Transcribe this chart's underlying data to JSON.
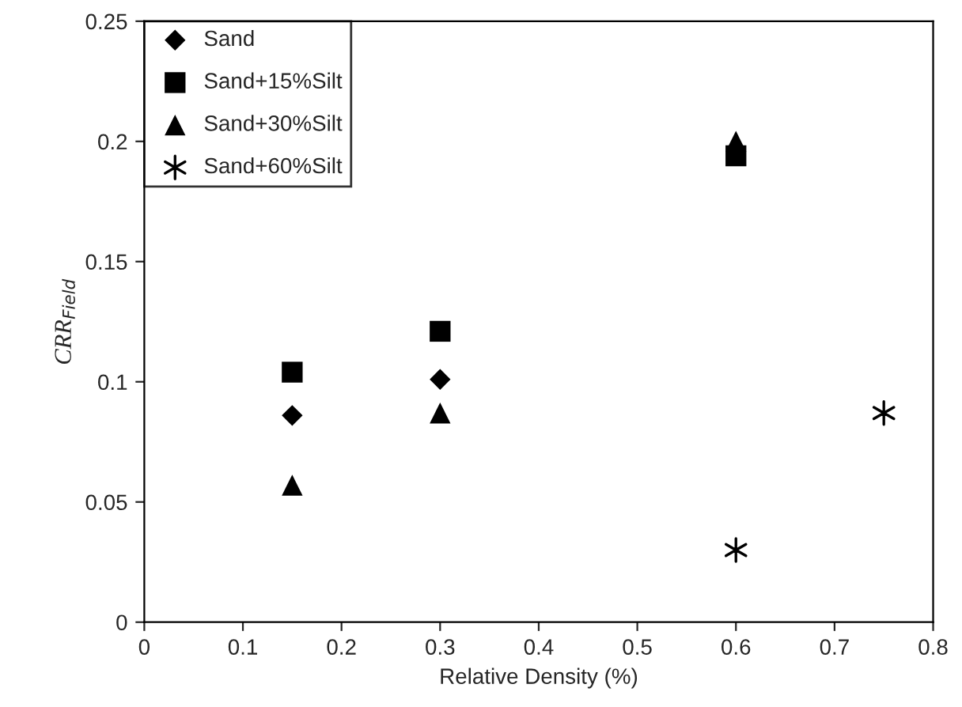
{
  "chart_data": {
    "type": "scatter",
    "xlabel": "Relative Density (%)",
    "ylabel": "CRR$_{Field}$",
    "xlim": [
      0,
      0.8
    ],
    "xticks": [
      0,
      0.1,
      0.2,
      0.3,
      0.4,
      0.5,
      0.6,
      0.7,
      0.8
    ],
    "ylim": [
      0,
      0.25
    ],
    "yticks": [
      0,
      0.05,
      0.1,
      0.15,
      0.2,
      0.25
    ],
    "grid": false,
    "legend": "top left",
    "series": [
      {
        "name": "Sand",
        "color": "#000000",
        "marker": "diamond",
        "x": [
          0.15,
          0.3
        ],
        "values": [
          0.086,
          0.101
        ]
      },
      {
        "name": "Sand+15%Silt",
        "color": "#000000",
        "marker": "square",
        "x": [
          0.15,
          0.3,
          0.6
        ],
        "values": [
          0.104,
          0.121,
          0.194
        ]
      },
      {
        "name": "Sand+30%Silt",
        "color": "#000000",
        "marker": "triangle",
        "x": [
          0.15,
          0.3,
          0.6
        ],
        "values": [
          0.057,
          0.087,
          0.2
        ]
      },
      {
        "name": "Sand+60%Silt",
        "color": "#000000",
        "marker": "cross",
        "x": [
          0.6,
          0.75
        ],
        "values": [
          0.03,
          0.087
        ]
      }
    ]
  }
}
